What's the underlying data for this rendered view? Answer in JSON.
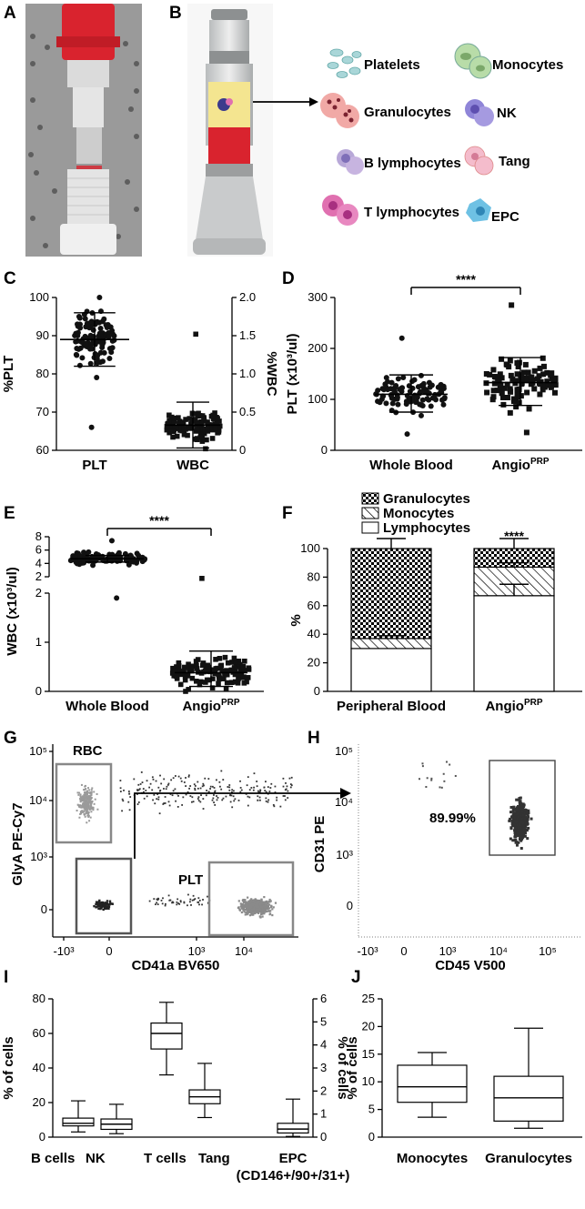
{
  "panels": {
    "A": "A",
    "B": "B",
    "C": "C",
    "D": "D",
    "E": "E",
    "F": "F",
    "G": "G",
    "H": "H",
    "I": "I",
    "J": "J"
  },
  "colors": {
    "red": "#d9232e",
    "plate": "#a8a8a8",
    "gray": "#888888",
    "dot": "#111111"
  },
  "panel_b": {
    "cells": [
      {
        "label": "Platelets",
        "icon": "platelets-icon",
        "color": "#a9d6d8"
      },
      {
        "label": "Monocytes",
        "icon": "monocytes-icon",
        "color": "#b8dca8"
      },
      {
        "label": "Granulocytes",
        "icon": "granulocytes-icon",
        "color": "#f1a9a6"
      },
      {
        "label": "NK",
        "icon": "nk-icon",
        "color": "#a59ae0"
      },
      {
        "label": "B lymphocytes",
        "icon": "b-lymphocytes-icon",
        "color": "#b8a8d8"
      },
      {
        "label": "Tang",
        "icon": "tang-icon",
        "color": "#f4bccc"
      },
      {
        "label": "T lymphocytes",
        "icon": "t-lymphocytes-icon",
        "color": "#e070b0"
      },
      {
        "label": "EPC",
        "icon": "epc-icon",
        "color": "#6ec1e4"
      }
    ]
  },
  "chart_data": [
    {
      "panel": "C",
      "type": "scatter",
      "xlabel": "",
      "ylabel": "%PLT",
      "y2label": "%WBC",
      "categories": [
        "PLT",
        "WBC"
      ],
      "ylim": [
        60,
        100
      ],
      "yticks": [
        "60",
        "70",
        "80",
        "90",
        "100"
      ],
      "y2lim": [
        0,
        2.0
      ],
      "y2ticks": [
        "0",
        "0.5",
        "1.0",
        "1.5",
        "2.0"
      ],
      "series": [
        {
          "name": "PLT",
          "axis": "left",
          "mean": 89,
          "sd_low": 82,
          "sd_high": 96,
          "range": [
            66,
            100
          ]
        },
        {
          "name": "WBC",
          "axis": "right",
          "mean": 0.33,
          "sd_low": 0.03,
          "sd_high": 0.63,
          "range": [
            0.02,
            1.52
          ]
        }
      ]
    },
    {
      "panel": "D",
      "type": "scatter",
      "ylabel": "PLT (x10³/ul)",
      "categories": [
        "Whole Blood",
        "Angio"
      ],
      "category_sup": [
        "",
        "PRP"
      ],
      "ylim": [
        0,
        300
      ],
      "yticks": [
        "0",
        "100",
        "200",
        "300"
      ],
      "series": [
        {
          "name": "Whole Blood",
          "mean": 110,
          "sd_low": 75,
          "sd_high": 148,
          "range": [
            32,
            220
          ]
        },
        {
          "name": "AngioPRP",
          "mean": 133,
          "sd_low": 88,
          "sd_high": 182,
          "range": [
            35,
            285
          ]
        }
      ],
      "annotation": "****"
    },
    {
      "panel": "E",
      "type": "scatter",
      "ylabel": "WBC (x10³/ul)",
      "categories": [
        "Whole Blood",
        "Angio"
      ],
      "category_sup": [
        "",
        "PRP"
      ],
      "ylim_top": [
        2,
        8
      ],
      "yticks_top": [
        "2",
        "4",
        "6",
        "8"
      ],
      "ylim_bottom": [
        0,
        2
      ],
      "yticks_bottom": [
        "0",
        "1",
        "2"
      ],
      "series": [
        {
          "name": "Whole Blood",
          "mean": 4.7,
          "sd_low": 4.2,
          "sd_high": 5.2,
          "range": [
            1.9,
            7.4
          ]
        },
        {
          "name": "AngioPRP",
          "mean": 0.38,
          "sd_low": 0.1,
          "sd_high": 0.82,
          "range": [
            0.0,
            2.3
          ]
        }
      ],
      "annotation": "****"
    },
    {
      "panel": "F",
      "type": "bar",
      "ylabel": "%",
      "categories": [
        "Peripheral Blood",
        "Angio"
      ],
      "category_sup": [
        "",
        "PRP"
      ],
      "ylim": [
        0,
        100
      ],
      "yticks": [
        "0",
        "20",
        "40",
        "60",
        "80",
        "100"
      ],
      "series": [
        {
          "name": "Lymphocytes",
          "values": [
            30,
            67
          ]
        },
        {
          "name": "Monocytes",
          "values": [
            7,
            20
          ]
        },
        {
          "name": "Granulocytes",
          "values": [
            63,
            13
          ]
        }
      ],
      "legend": [
        "Granulocytes",
        "Monocytes",
        "Lymphocytes"
      ],
      "annotation": "****"
    },
    {
      "panel": "G",
      "type": "scatter",
      "xlabel": "CD41a BV650",
      "ylabel": "GlyA PE-Cy7",
      "xticks": [
        "-10³",
        "0",
        "10³",
        "10⁴"
      ],
      "yticks": [
        "0",
        "10³",
        "10⁴",
        "10⁵"
      ],
      "gates": [
        "RBC",
        "PLT"
      ]
    },
    {
      "panel": "H",
      "type": "scatter",
      "xlabel": "CD45 V500",
      "ylabel": "CD31 PE",
      "xticks": [
        "-10³",
        "0",
        "10³",
        "10⁴",
        "10⁵"
      ],
      "yticks": [
        "0",
        "10³",
        "10⁴",
        "10⁵"
      ],
      "gate_value": "89.99%"
    },
    {
      "panel": "I",
      "type": "box",
      "ylabel": "% of cells",
      "y2label": "% of cells",
      "categories": [
        "B cells",
        "NK",
        "T cells",
        "Tang",
        "EPC"
      ],
      "extra_label": "(CD146+/90+/31+)",
      "ylim": [
        0,
        80
      ],
      "yticks": [
        "0",
        "20",
        "40",
        "60",
        "80"
      ],
      "y2lim": [
        0,
        6
      ],
      "y2ticks": [
        "0",
        "1",
        "2",
        "3",
        "4",
        "5",
        "6"
      ],
      "series": [
        {
          "name": "B cells",
          "axis": "left",
          "min": 3,
          "q1": 6.5,
          "median": 8,
          "q3": 11,
          "max": 21
        },
        {
          "name": "NK",
          "axis": "left",
          "min": 2,
          "q1": 4.5,
          "median": 7.5,
          "q3": 10.5,
          "max": 19
        },
        {
          "name": "T cells",
          "axis": "left",
          "min": 36,
          "q1": 51,
          "median": 60,
          "q3": 66,
          "max": 78
        },
        {
          "name": "Tang",
          "axis": "right",
          "min": 0.85,
          "q1": 1.45,
          "median": 1.75,
          "q3": 2.05,
          "max": 3.2
        },
        {
          "name": "EPC",
          "axis": "right",
          "min": 0.03,
          "q1": 0.18,
          "median": 0.35,
          "q3": 0.6,
          "max": 1.65
        }
      ]
    },
    {
      "panel": "J",
      "type": "box",
      "ylabel": "% of cells",
      "categories": [
        "Monocytes",
        "Granulocytes"
      ],
      "ylim": [
        0,
        25
      ],
      "yticks": [
        "0",
        "5",
        "10",
        "15",
        "20",
        "25"
      ],
      "series": [
        {
          "name": "Monocytes",
          "min": 3.6,
          "q1": 6.3,
          "median": 9.1,
          "q3": 13,
          "max": 15.3
        },
        {
          "name": "Granulocytes",
          "min": 1.6,
          "q1": 2.9,
          "median": 7.1,
          "q3": 11,
          "max": 19.7
        }
      ]
    }
  ]
}
